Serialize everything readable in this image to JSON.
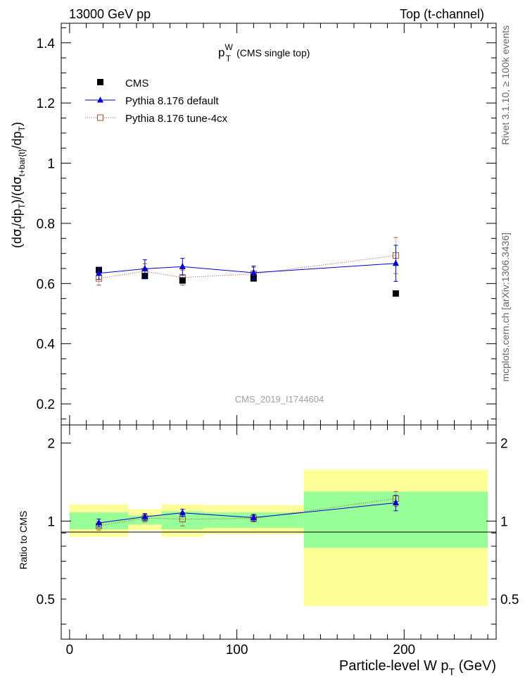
{
  "header": {
    "left": "13000 GeV pp",
    "right": "Top (t-channel)"
  },
  "side_labels": {
    "rivet": "Rivet 3.1.10, ≥ 100k events",
    "mcplots": "mcplots.cern.ch [arXiv:1306.3436]"
  },
  "colors": {
    "cms": "#000000",
    "default": "#0000cc",
    "tune": "#a0522d",
    "band_inner": "#99ff99",
    "band_outer": "#ffff99"
  },
  "chart_data": [
    {
      "type": "scatter",
      "panel": "main",
      "title_main": "p",
      "title_sup": "W",
      "title_sub": "T",
      "title_suffix": "(CMS single top)",
      "watermark": "CMS_2019_I1744604",
      "ylabel": "(dσ_t/dp_T)/(dσ_{t+bar{t}}/dp_T)",
      "xlim": [
        -5,
        255
      ],
      "ylim": [
        0.13,
        1.465
      ],
      "y_ticks": [
        0.2,
        0.4,
        0.6,
        0.8,
        1.0,
        1.2,
        1.4
      ],
      "y_tick_labels": [
        "0.2",
        "0.4",
        "0.6",
        "0.8",
        "1",
        "1.2",
        "1.4"
      ],
      "legend": [
        "CMS",
        "Pythia 8.176 default",
        "Pythia 8.176 tune-4cx"
      ],
      "series": [
        {
          "name": "CMS",
          "marker": "square-filled",
          "x": [
            17.5,
            45,
            67.5,
            110,
            195
          ],
          "y": [
            0.645,
            0.625,
            0.61,
            0.617,
            0.567
          ],
          "err": [
            0.006,
            0.006,
            0.006,
            0.006,
            0.006
          ]
        },
        {
          "name": "Pythia 8.176 default",
          "marker": "triangle",
          "x": [
            17.5,
            45,
            67.5,
            110,
            195
          ],
          "y": [
            0.634,
            0.649,
            0.656,
            0.636,
            0.667
          ],
          "err": [
            0.02,
            0.03,
            0.028,
            0.022,
            0.06
          ]
        },
        {
          "name": "Pythia 8.176 tune-4cx",
          "marker": "square-open",
          "x": [
            17.5,
            45,
            67.5,
            110,
            195
          ],
          "y": [
            0.617,
            0.641,
            0.62,
            0.632,
            0.693
          ],
          "err": [
            0.022,
            0.025,
            0.025,
            0.022,
            0.06
          ]
        }
      ]
    },
    {
      "type": "scatter",
      "panel": "ratio",
      "ylabel": "Ratio to CMS",
      "xlabel": "Particle-level W p_T (GeV)",
      "xlim": [
        -5,
        255
      ],
      "ylim": [
        0.35,
        2.35
      ],
      "x_ticks": [
        0,
        100,
        200
      ],
      "x_tick_labels": [
        "0",
        "100",
        "200"
      ],
      "y_label_ticks": [
        0.5,
        1,
        2
      ],
      "y_tick_labels": [
        "0.5",
        "1",
        "2"
      ],
      "bins": [
        {
          "x0": 0,
          "x1": 35,
          "inner": [
            0.93,
            1.08
          ],
          "outer": [
            0.87,
            1.16
          ]
        },
        {
          "x0": 35,
          "x1": 55,
          "inner": [
            0.97,
            1.05
          ],
          "outer": [
            0.92,
            1.11
          ]
        },
        {
          "x0": 55,
          "x1": 80,
          "inner": [
            0.93,
            1.09
          ],
          "outer": [
            0.87,
            1.16
          ]
        },
        {
          "x0": 80,
          "x1": 140,
          "inner": [
            0.94,
            1.08
          ],
          "outer": [
            0.89,
            1.15
          ]
        },
        {
          "x0": 140,
          "x1": 250,
          "inner": [
            0.79,
            1.3
          ],
          "outer": [
            0.47,
            1.58
          ]
        }
      ],
      "series": [
        {
          "name": "Pythia 8.176 default",
          "marker": "triangle",
          "x": [
            17.5,
            45,
            67.5,
            110,
            195
          ],
          "y": [
            0.984,
            1.039,
            1.076,
            1.031,
            1.176
          ],
          "err": [
            0.035,
            0.03,
            0.035,
            0.03,
            0.08
          ]
        },
        {
          "name": "Pythia 8.176 tune-4cx",
          "marker": "square-open",
          "x": [
            17.5,
            45,
            67.5,
            110,
            195
          ],
          "y": [
            0.958,
            1.028,
            1.018,
            1.024,
            1.221
          ],
          "err": [
            0.035,
            0.035,
            0.06,
            0.03,
            0.08
          ]
        }
      ]
    }
  ]
}
